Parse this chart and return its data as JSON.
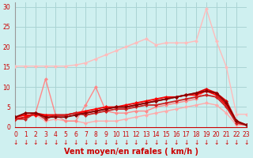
{
  "xlabel": "Vent moyen/en rafales ( km/h )",
  "background_color": "#cff0f0",
  "grid_color": "#aad4d4",
  "x_ticks": [
    0,
    1,
    2,
    3,
    4,
    5,
    6,
    7,
    8,
    9,
    10,
    11,
    12,
    13,
    14,
    15,
    16,
    17,
    18,
    19,
    20,
    21,
    22,
    23
  ],
  "y_ticks": [
    0,
    5,
    10,
    15,
    20,
    25,
    30
  ],
  "xlim": [
    0,
    23
  ],
  "ylim": [
    0,
    31
  ],
  "series": [
    {
      "x": [
        0,
        1,
        2,
        3,
        4,
        5,
        6,
        7,
        8,
        9,
        10,
        11,
        12,
        13,
        14,
        15,
        16,
        17,
        18,
        19,
        20,
        21,
        22,
        23
      ],
      "y": [
        15.2,
        15.2,
        15.2,
        15.2,
        15.2,
        15.2,
        15.5,
        16.0,
        17.0,
        18.0,
        19.0,
        20.0,
        21.0,
        22.0,
        20.5,
        21.0,
        21.0,
        21.0,
        21.5,
        29.5,
        21.5,
        15.0,
        3.2,
        3.2
      ],
      "color": "#ffbbbb",
      "lw": 1.0,
      "marker": "D",
      "ms": 2.5
    },
    {
      "x": [
        0,
        1,
        2,
        3,
        4,
        5,
        6,
        7,
        8,
        9,
        10,
        11,
        12,
        13,
        14,
        15,
        16,
        17,
        18,
        19,
        20,
        21,
        22,
        23
      ],
      "y": [
        2.5,
        3.0,
        3.0,
        1.5,
        2.0,
        1.5,
        1.5,
        1.0,
        1.5,
        1.5,
        1.5,
        2.0,
        2.5,
        3.0,
        3.5,
        4.0,
        4.5,
        5.0,
        5.5,
        6.0,
        5.5,
        3.5,
        0.5,
        0.5
      ],
      "color": "#ffaaaa",
      "lw": 1.0,
      "marker": "D",
      "ms": 2.5
    },
    {
      "x": [
        0,
        1,
        2,
        3,
        4,
        5,
        6,
        7,
        8,
        9,
        10,
        11,
        12,
        13,
        14,
        15,
        16,
        17,
        18,
        19,
        20,
        21,
        22,
        23
      ],
      "y": [
        2.0,
        3.5,
        3.5,
        12.0,
        3.0,
        1.5,
        1.5,
        5.5,
        10.0,
        4.0,
        3.5,
        3.5,
        4.0,
        4.0,
        5.0,
        5.5,
        6.0,
        6.5,
        7.0,
        9.5,
        8.0,
        5.5,
        1.0,
        0.5
      ],
      "color": "#ff8888",
      "lw": 1.0,
      "marker": "D",
      "ms": 2.5
    },
    {
      "x": [
        0,
        1,
        2,
        3,
        4,
        5,
        6,
        7,
        8,
        9,
        10,
        11,
        12,
        13,
        14,
        15,
        16,
        17,
        18,
        19,
        20,
        21,
        22,
        23
      ],
      "y": [
        2.0,
        2.5,
        3.5,
        3.0,
        3.0,
        3.0,
        3.5,
        3.5,
        4.0,
        4.5,
        5.0,
        5.0,
        5.5,
        6.0,
        6.5,
        7.0,
        7.5,
        8.0,
        8.5,
        9.5,
        8.5,
        6.5,
        1.5,
        0.5
      ],
      "color": "#dd0000",
      "lw": 1.3,
      "marker": "D",
      "ms": 2.5
    },
    {
      "x": [
        0,
        1,
        2,
        3,
        4,
        5,
        6,
        7,
        8,
        9,
        10,
        11,
        12,
        13,
        14,
        15,
        16,
        17,
        18,
        19,
        20,
        21,
        22,
        23
      ],
      "y": [
        2.5,
        3.0,
        3.0,
        3.0,
        3.0,
        3.0,
        3.5,
        4.0,
        4.5,
        5.0,
        5.0,
        5.5,
        6.0,
        6.5,
        7.0,
        7.5,
        7.5,
        8.0,
        8.0,
        9.0,
        8.0,
        5.5,
        1.5,
        0.5
      ],
      "color": "#ff0000",
      "lw": 1.3,
      "marker": "D",
      "ms": 2.5
    },
    {
      "x": [
        0,
        1,
        2,
        3,
        4,
        5,
        6,
        7,
        8,
        9,
        10,
        11,
        12,
        13,
        14,
        15,
        16,
        17,
        18,
        19,
        20,
        21,
        22,
        23
      ],
      "y": [
        2.0,
        2.0,
        3.5,
        2.0,
        3.0,
        3.0,
        3.5,
        3.0,
        3.5,
        4.0,
        4.5,
        4.5,
        5.0,
        5.5,
        5.5,
        6.0,
        6.5,
        7.0,
        7.5,
        8.0,
        7.5,
        5.0,
        1.0,
        0.5
      ],
      "color": "#cc2222",
      "lw": 1.3,
      "marker": "D",
      "ms": 2.5
    },
    {
      "x": [
        0,
        1,
        2,
        3,
        4,
        5,
        6,
        7,
        8,
        9,
        10,
        11,
        12,
        13,
        14,
        15,
        16,
        17,
        18,
        19,
        20,
        21,
        22,
        23
      ],
      "y": [
        2.5,
        3.5,
        3.5,
        2.5,
        2.5,
        2.5,
        3.0,
        3.5,
        4.0,
        4.5,
        5.0,
        5.0,
        5.5,
        6.0,
        6.5,
        7.0,
        7.5,
        8.0,
        8.5,
        9.0,
        8.5,
        6.0,
        1.5,
        0.5
      ],
      "color": "#880000",
      "lw": 1.3,
      "marker": "D",
      "ms": 2.5
    }
  ],
  "xlabel_fontsize": 7,
  "tick_fontsize": 5.5
}
